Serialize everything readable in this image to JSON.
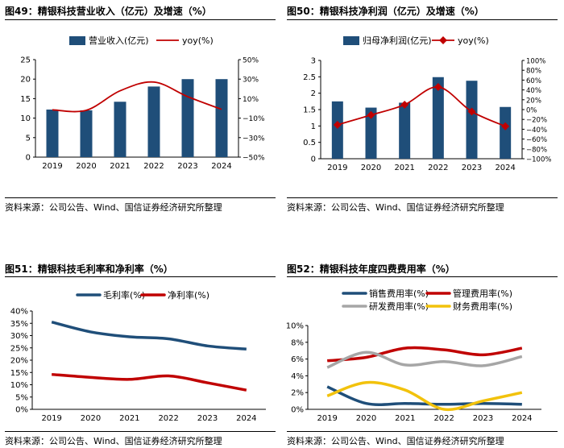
{
  "source_text": "资料来源：公司公告、Wind、国信证券经济研究所整理",
  "chart_data": [
    {
      "id": "fig49",
      "type": "bar+line",
      "title": "图49：精银科技营业收入（亿元）及增速（%）",
      "categories": [
        "2019",
        "2020",
        "2021",
        "2022",
        "2023",
        "2024"
      ],
      "series": [
        {
          "name": "营业收入(亿元)",
          "kind": "bar",
          "axis": "left",
          "values": [
            12.2,
            12.0,
            14.2,
            18.1,
            20.0,
            20.0
          ]
        },
        {
          "name": "yoy(%)",
          "kind": "line",
          "axis": "right",
          "values": [
            -1.5,
            -2.0,
            18.0,
            27.0,
            12.0,
            -1.0
          ]
        }
      ],
      "yleft": {
        "min": 0,
        "max": 25,
        "ticks": [
          "0",
          "5",
          "10",
          "15",
          "20",
          "25"
        ]
      },
      "yright": {
        "min": -50,
        "max": 50,
        "ticks": [
          "−50%",
          "−30%",
          "−10%",
          "10%",
          "30%",
          "50%"
        ]
      },
      "colors": {
        "bar": "#1f4e79",
        "line": "#c00000"
      }
    },
    {
      "id": "fig50",
      "type": "bar+line",
      "title": "图50：精银科技净利润（亿元）及增速（%）",
      "categories": [
        "2019",
        "2020",
        "2021",
        "2022",
        "2023",
        "2024"
      ],
      "series": [
        {
          "name": "归母净利润(亿元)",
          "kind": "bar",
          "axis": "left",
          "values": [
            1.75,
            1.56,
            1.71,
            2.49,
            2.38,
            1.58
          ]
        },
        {
          "name": "yoy(%)",
          "kind": "line",
          "axis": "right",
          "values": [
            -31,
            -11,
            10,
            46,
            -4,
            -34
          ]
        }
      ],
      "yleft": {
        "min": 0,
        "max": 3,
        "ticks": [
          "0",
          "0.5",
          "1",
          "1.5",
          "2",
          "2.5",
          "3"
        ]
      },
      "yright": {
        "min": -100,
        "max": 100,
        "ticks": [
          "−100%",
          "−80%",
          "−60%",
          "−40%",
          "−20%",
          "0%",
          "20%",
          "40%",
          "60%",
          "80%",
          "100%"
        ]
      },
      "colors": {
        "bar": "#1f4e79",
        "line": "#c00000"
      }
    },
    {
      "id": "fig51",
      "type": "line",
      "title": "图51：精银科技毛利率和净利率（%）",
      "categories": [
        "2019",
        "2020",
        "2021",
        "2022",
        "2023",
        "2024"
      ],
      "series": [
        {
          "name": "毛利率(%)",
          "values": [
            35.5,
            31.5,
            29.5,
            28.7,
            25.8,
            24.5
          ],
          "color": "#1f4e79"
        },
        {
          "name": "净利率(%)",
          "values": [
            14.2,
            13.0,
            12.2,
            13.6,
            10.8,
            7.8
          ],
          "color": "#c00000"
        }
      ],
      "ylim": [
        0,
        40
      ],
      "ticks": [
        "0%",
        "5%",
        "10%",
        "15%",
        "20%",
        "25%",
        "30%",
        "35%",
        "40%"
      ]
    },
    {
      "id": "fig52",
      "type": "line",
      "title": "图52：精银科技年度四费费用率（%）",
      "categories": [
        "2019",
        "2020",
        "2021",
        "2022",
        "2023",
        "2024"
      ],
      "series": [
        {
          "name": "销售费用率(%)",
          "values": [
            2.7,
            0.7,
            0.7,
            0.6,
            0.7,
            0.6
          ],
          "color": "#1f4e79"
        },
        {
          "name": "管理费用率(%)",
          "values": [
            5.8,
            6.2,
            7.3,
            7.1,
            6.5,
            7.3
          ],
          "color": "#c00000"
        },
        {
          "name": "研发费用率(%)",
          "values": [
            5.0,
            6.8,
            5.3,
            5.7,
            5.2,
            6.3
          ],
          "color": "#a6a6a6"
        },
        {
          "name": "财务费用率(%)",
          "values": [
            1.6,
            3.2,
            2.3,
            0.0,
            1.0,
            2.0
          ],
          "color": "#f2c20c"
        }
      ],
      "ylim": [
        0,
        10
      ],
      "ticks": [
        "0%",
        "2%",
        "4%",
        "6%",
        "8%",
        "10%"
      ]
    }
  ]
}
